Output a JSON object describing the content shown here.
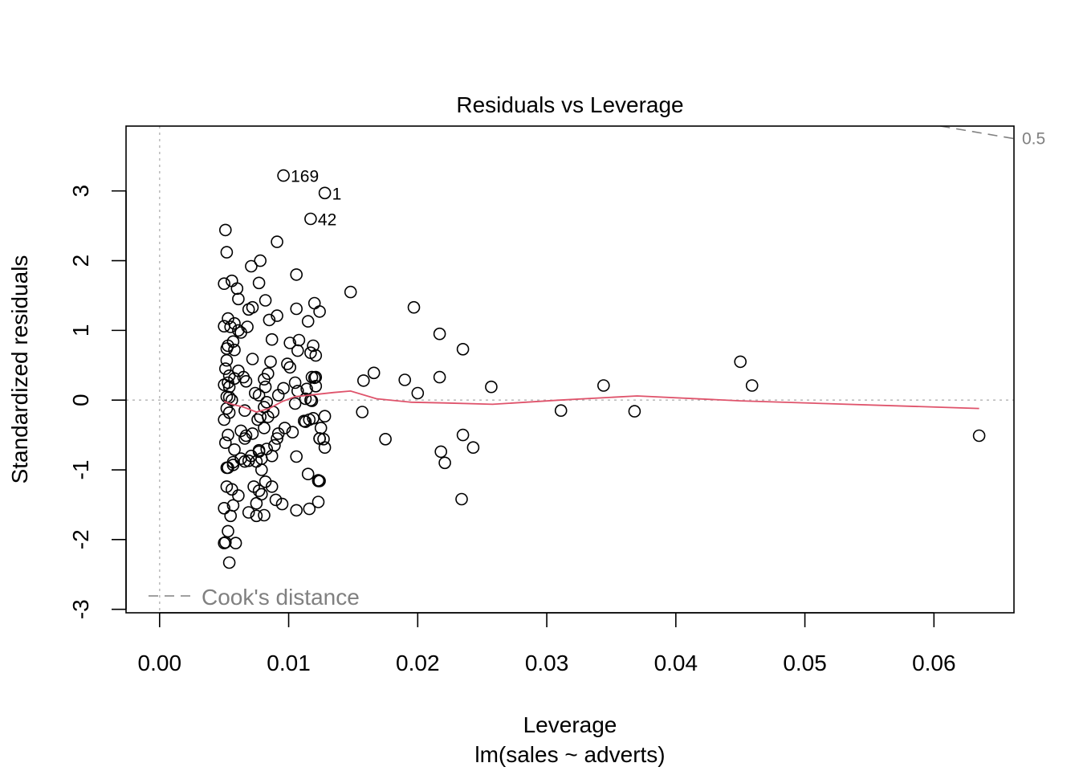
{
  "chart_data": {
    "type": "scatter",
    "title": "Residuals vs Leverage",
    "xlabel": "Leverage",
    "subtitle": "lm(sales ~ adverts)",
    "ylabel": "Standardized residuals",
    "xlim": [
      -0.0026,
      0.0662
    ],
    "ylim": [
      -3.05,
      3.93
    ],
    "x_ticks": [
      0.0,
      0.01,
      0.02,
      0.03,
      0.04,
      0.05,
      0.06
    ],
    "x_tick_labels": [
      "0.00",
      "0.01",
      "0.02",
      "0.03",
      "0.04",
      "0.05",
      "0.06"
    ],
    "y_ticks": [
      -3,
      -2,
      -1,
      0,
      1,
      2,
      3
    ],
    "y_tick_labels": [
      "-3",
      "-2",
      "-1",
      "0",
      "1",
      "2",
      "3"
    ],
    "reference_lines": {
      "y_zero": 0,
      "x_zero": 0
    },
    "legend": {
      "label": "Cook's distance",
      "position": "bottom-left"
    },
    "cooks_contour": {
      "level": 0.5,
      "label": "0.5",
      "x": [
        0.0605,
        0.0662
      ],
      "y": [
        3.93,
        3.75
      ]
    },
    "colors": {
      "points": "#000000",
      "smoother": "#DF536B",
      "reference": "#BEBEBE",
      "cooks": "#808080"
    },
    "labeled_points": [
      {
        "label": "169",
        "x": 0.0096,
        "y": 3.22
      },
      {
        "label": "1",
        "x": 0.0128,
        "y": 2.97
      },
      {
        "label": "42",
        "x": 0.0117,
        "y": 2.6
      }
    ],
    "smoother": {
      "x": [
        0.005,
        0.0056,
        0.0065,
        0.0075,
        0.0085,
        0.0095,
        0.0105,
        0.012,
        0.0135,
        0.0148,
        0.0168,
        0.0195,
        0.022,
        0.0258,
        0.031,
        0.037,
        0.045,
        0.0635
      ],
      "y": [
        -0.02,
        -0.06,
        -0.1,
        -0.17,
        -0.12,
        -0.02,
        0.05,
        0.08,
        0.11,
        0.13,
        0.02,
        -0.03,
        -0.04,
        -0.06,
        0.0,
        0.06,
        -0.01,
        -0.12
      ]
    },
    "x": [
      0.0096,
      0.0128,
      0.0117,
      0.0051,
      0.0052,
      0.0091,
      0.0071,
      0.0078,
      0.0106,
      0.005,
      0.0056,
      0.0077,
      0.006,
      0.0061,
      0.0082,
      0.0072,
      0.0069,
      0.0091,
      0.0106,
      0.012,
      0.0124,
      0.0085,
      0.0115,
      0.0053,
      0.0058,
      0.0061,
      0.0055,
      0.0068,
      0.0063,
      0.005,
      0.0057,
      0.0053,
      0.0087,
      0.0108,
      0.0101,
      0.0119,
      0.0072,
      0.0052,
      0.0058,
      0.0107,
      0.0117,
      0.0121,
      0.0052,
      0.0086,
      0.0099,
      0.0101,
      0.0061,
      0.0051,
      0.0054,
      0.0058,
      0.0053,
      0.0084,
      0.0081,
      0.0118,
      0.012,
      0.0121,
      0.0065,
      0.005,
      0.0054,
      0.0067,
      0.0082,
      0.0096,
      0.0114,
      0.0105,
      0.0121,
      0.0074,
      0.0077,
      0.0052,
      0.0092,
      0.0117,
      0.0113,
      0.0054,
      0.0056,
      0.0083,
      0.0105,
      0.0118,
      0.0107,
      0.0066,
      0.0081,
      0.0088,
      0.0076,
      0.005,
      0.0052,
      0.0054,
      0.0078,
      0.0084,
      0.0112,
      0.0116,
      0.0119,
      0.0128,
      0.0125,
      0.0063,
      0.0067,
      0.0072,
      0.0081,
      0.0092,
      0.0097,
      0.0103,
      0.0127,
      0.0124,
      0.0053,
      0.0051,
      0.0091,
      0.0124,
      0.0089,
      0.0066,
      0.0058,
      0.0128,
      0.0063,
      0.0071,
      0.0077,
      0.0087,
      0.0057,
      0.0053,
      0.0069,
      0.0075,
      0.0079,
      0.0106,
      0.0115,
      0.0124,
      0.0052,
      0.0056,
      0.0082,
      0.0061,
      0.0077,
      0.005,
      0.0073,
      0.0079,
      0.009,
      0.0116,
      0.0123,
      0.0057,
      0.0081,
      0.0075,
      0.0123,
      0.0069,
      0.0055,
      0.0075,
      0.0087,
      0.0123,
      0.0095,
      0.0053,
      0.0106,
      0.0057,
      0.0066,
      0.0079,
      0.0077,
      0.0083,
      0.0113,
      0.005,
      0.0051,
      0.0054,
      0.0059,
      0.0052,
      0.0148,
      0.0158,
      0.0166,
      0.0197,
      0.019,
      0.02,
      0.0217,
      0.0217,
      0.0235,
      0.0257,
      0.0157,
      0.0175,
      0.0235,
      0.0243,
      0.0218,
      0.0221,
      0.0234,
      0.0311,
      0.0344,
      0.0368,
      0.045,
      0.0459,
      0.0635
    ],
    "y": [
      3.22,
      2.97,
      2.6,
      2.44,
      2.12,
      2.27,
      1.92,
      2.0,
      1.8,
      1.67,
      1.71,
      1.68,
      1.6,
      1.45,
      1.43,
      1.33,
      1.3,
      1.21,
      1.31,
      1.39,
      1.27,
      1.15,
      1.13,
      1.17,
      1.1,
      1.0,
      1.05,
      1.05,
      0.97,
      1.06,
      0.84,
      0.78,
      0.87,
      0.86,
      0.82,
      0.78,
      0.59,
      0.74,
      0.72,
      0.71,
      0.68,
      0.64,
      0.57,
      0.55,
      0.52,
      0.47,
      0.42,
      0.45,
      0.35,
      0.31,
      0.25,
      0.38,
      0.3,
      0.33,
      0.32,
      0.33,
      0.33,
      0.22,
      0.19,
      0.27,
      0.19,
      0.17,
      0.16,
      0.25,
      0.2,
      0.1,
      0.07,
      0.05,
      0.07,
      0.0,
      0.02,
      0.04,
      0.0,
      -0.03,
      -0.05,
      -0.01,
      0.13,
      -0.15,
      -0.1,
      -0.17,
      -0.28,
      -0.28,
      -0.12,
      -0.18,
      -0.24,
      -0.24,
      -0.3,
      -0.28,
      -0.26,
      -0.23,
      -0.4,
      -0.44,
      -0.51,
      -0.48,
      -0.4,
      -0.48,
      -0.4,
      -0.46,
      -0.56,
      -0.55,
      -0.5,
      -0.61,
      -0.55,
      -0.55,
      -0.65,
      -0.55,
      -0.71,
      -0.68,
      -0.84,
      -0.8,
      -0.72,
      -0.8,
      -0.89,
      -0.97,
      -0.87,
      -0.88,
      -1.0,
      -0.81,
      -1.06,
      -1.16,
      -1.24,
      -1.28,
      -1.17,
      -1.37,
      -1.3,
      -1.55,
      -1.24,
      -1.35,
      -1.43,
      -1.56,
      -1.46,
      -1.51,
      -1.65,
      -1.66,
      -1.16,
      -1.61,
      -1.66,
      -1.48,
      -1.24,
      -1.15,
      -1.49,
      -1.88,
      -1.58,
      -0.93,
      -0.88,
      -0.84,
      -0.74,
      -0.7,
      -0.31,
      -2.05,
      -2.04,
      -2.33,
      -2.05,
      -0.97,
      1.55,
      0.28,
      0.39,
      1.33,
      0.29,
      0.1,
      0.95,
      0.33,
      0.73,
      0.19,
      -0.17,
      -0.56,
      -0.5,
      -0.68,
      -0.74,
      -0.9,
      -1.42,
      -0.15,
      0.21,
      -0.16,
      0.55,
      0.21,
      -0.51
    ]
  }
}
